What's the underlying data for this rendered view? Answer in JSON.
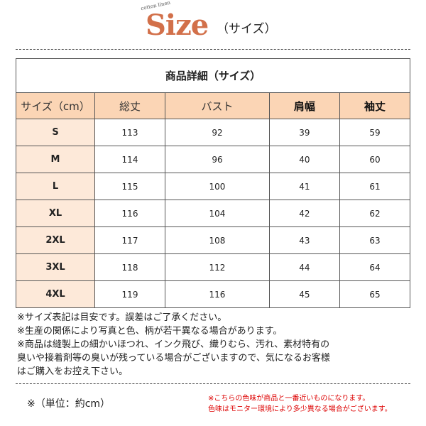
{
  "header": {
    "logo_sub": "cotton linen",
    "logo": "Size",
    "logo_jp": "（サイズ）"
  },
  "table": {
    "title": "商品詳細（サイズ）",
    "columns": [
      "サイズ（cm）",
      "総丈",
      "バスト",
      "肩幅",
      "袖丈"
    ],
    "rows": [
      [
        "S",
        "113",
        "92",
        "39",
        "59"
      ],
      [
        "M",
        "114",
        "96",
        "40",
        "60"
      ],
      [
        "L",
        "115",
        "100",
        "41",
        "61"
      ],
      [
        "XL",
        "116",
        "104",
        "42",
        "62"
      ],
      [
        "2XL",
        "117",
        "108",
        "43",
        "63"
      ],
      [
        "3XL",
        "118",
        "112",
        "44",
        "64"
      ],
      [
        "4XL",
        "119",
        "116",
        "45",
        "65"
      ]
    ]
  },
  "notes": [
    "※サイズ表記は目安です。誤差はご了承ください。",
    "※生産の関係により写真と色、柄が若干異なる場合があります。",
    "※商品は縫製上の細かいほつれ、インク飛び、織りむら、汚れ、素材特有の",
    "臭いや接着剤等の臭いが残っている場合がございますので、気になるお客様",
    "はご購入をお控え下さい。"
  ],
  "unit": "※（単位：約cm）",
  "color_notes": [
    "※こちらの色味が商品と一番近いものになります。",
    "色味はモニター環境により多少異なる場合がございます。"
  ],
  "colors": {
    "accent": "#d2704a",
    "header_bg": "#fbd5b5",
    "size_col_bg": "#fde9d9",
    "warning": "#dd0000"
  }
}
